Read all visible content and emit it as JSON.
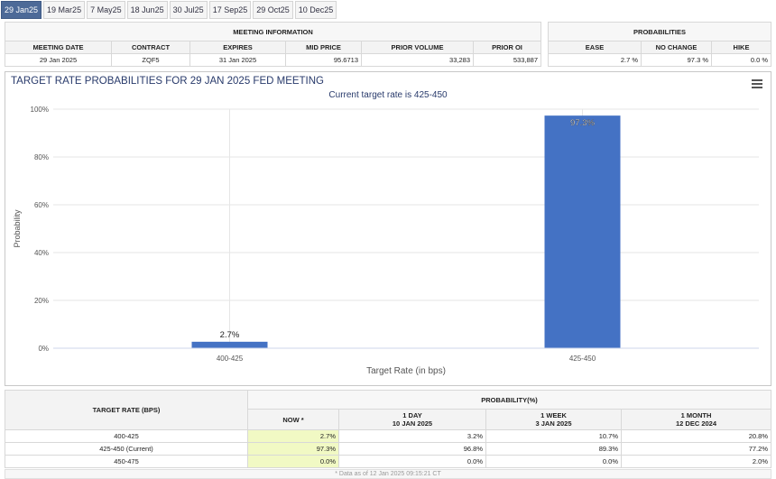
{
  "tabs": [
    "29 Jan25",
    "19 Mar25",
    "7 May25",
    "18 Jun25",
    "30 Jul25",
    "17 Sep25",
    "29 Oct25",
    "10 Dec25"
  ],
  "active_tab": 0,
  "meeting_info": {
    "title": "MEETING INFORMATION",
    "headers": [
      "MEETING DATE",
      "CONTRACT",
      "EXPIRES",
      "MID PRICE",
      "PRIOR VOLUME",
      "PRIOR OI"
    ],
    "values": [
      "29 Jan 2025",
      "ZQF5",
      "31 Jan 2025",
      "95.6713",
      "33,283",
      "533,887"
    ]
  },
  "probabilities": {
    "title": "PROBABILITIES",
    "headers": [
      "EASE",
      "NO CHANGE",
      "HIKE"
    ],
    "values": [
      "2.7 %",
      "97.3 %",
      "0.0 %"
    ]
  },
  "chart_data": {
    "type": "bar",
    "title": "TARGET RATE PROBABILITIES FOR 29 JAN 2025 FED MEETING",
    "subtitle": "Current target rate is 425-450",
    "xlabel": "Target Rate (in bps)",
    "ylabel": "Probability",
    "categories": [
      "400-425",
      "425-450"
    ],
    "values": [
      2.7,
      97.3
    ],
    "data_labels": [
      "2.7%",
      "97.3%"
    ],
    "ylim": [
      0,
      100
    ],
    "yticks": [
      "0%",
      "20%",
      "40%",
      "60%",
      "80%",
      "100%"
    ],
    "bar_color": "#4472c4"
  },
  "bottom": {
    "col_target": "TARGET RATE (BPS)",
    "col_prob": "PROBABILITY(%)",
    "sub": [
      {
        "l1": "NOW *",
        "l2": ""
      },
      {
        "l1": "1 DAY",
        "l2": "10 JAN 2025"
      },
      {
        "l1": "1 WEEK",
        "l2": "3 JAN 2025"
      },
      {
        "l1": "1 MONTH",
        "l2": "12 DEC 2024"
      }
    ],
    "rows": [
      {
        "rate": "400-425",
        "v": [
          "2.7%",
          "3.2%",
          "10.7%",
          "20.8%"
        ]
      },
      {
        "rate": "425-450 (Current)",
        "v": [
          "97.3%",
          "96.8%",
          "89.3%",
          "77.2%"
        ]
      },
      {
        "rate": "450-475",
        "v": [
          "0.0%",
          "0.0%",
          "0.0%",
          "2.0%"
        ]
      }
    ],
    "footnote": "* Data as of 12 Jan 2025 09:15:21 CT"
  }
}
